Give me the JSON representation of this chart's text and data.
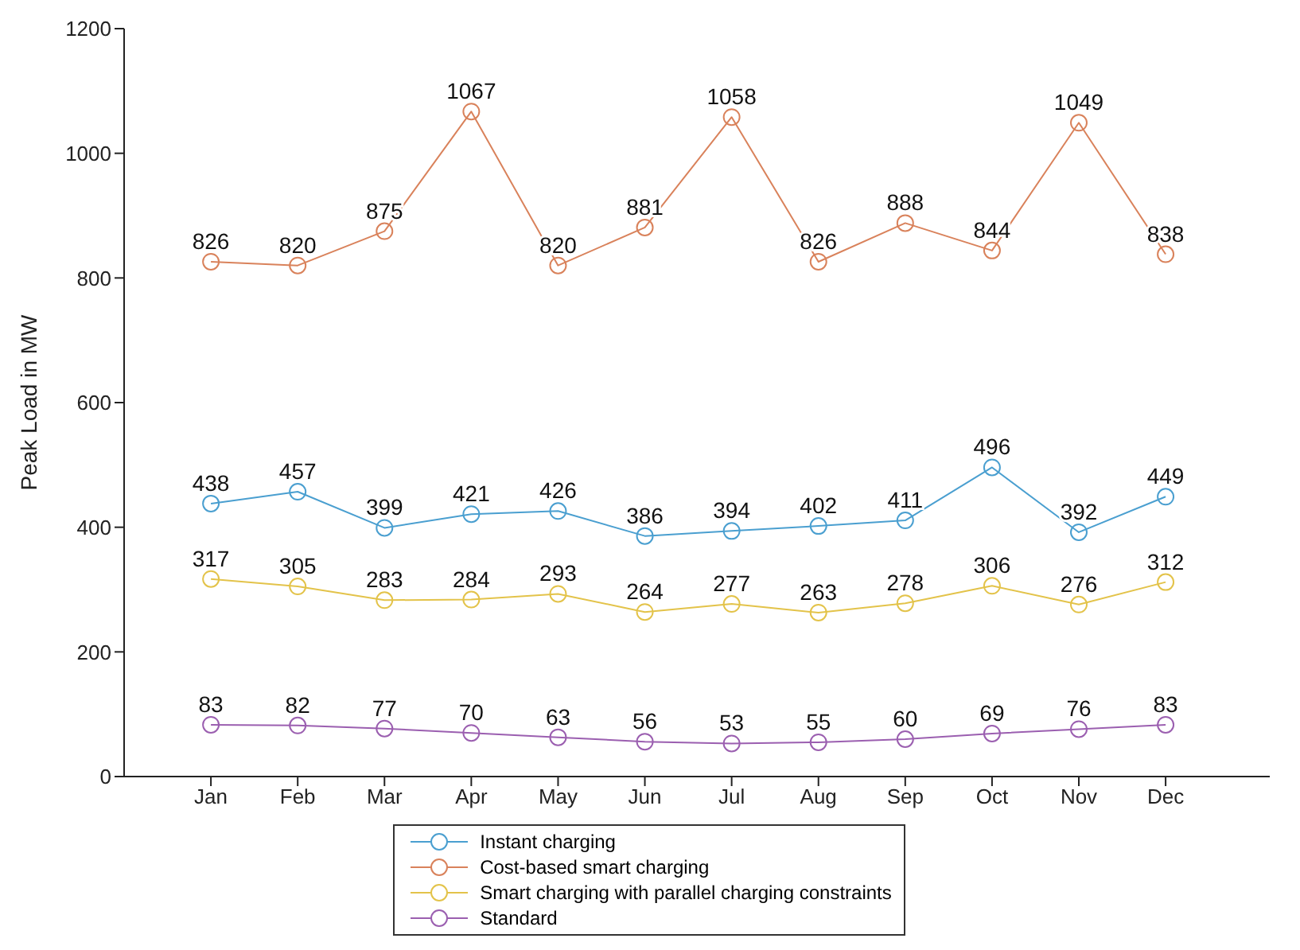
{
  "chart_data": {
    "type": "line",
    "ylabel": "Peak Load in MW",
    "categories": [
      "Jan",
      "Feb",
      "Mar",
      "Apr",
      "May",
      "Jun",
      "Jul",
      "Aug",
      "Sep",
      "Oct",
      "Nov",
      "Dec"
    ],
    "series": [
      {
        "name": "Instant charging",
        "color": "#4a9fd0",
        "values": [
          438,
          457,
          399,
          421,
          426,
          386,
          394,
          402,
          411,
          496,
          392,
          449
        ]
      },
      {
        "name": "Cost-based smart charging",
        "color": "#d9825b",
        "values": [
          826,
          820,
          875,
          1067,
          820,
          881,
          1058,
          826,
          888,
          844,
          1049,
          838
        ]
      },
      {
        "name": "Smart charging with parallel charging constraints",
        "color": "#e3c34a",
        "values": [
          317,
          305,
          283,
          284,
          293,
          264,
          277,
          263,
          278,
          306,
          276,
          312
        ]
      },
      {
        "name": "Standard",
        "color": "#9b5fb0",
        "values": [
          83,
          82,
          77,
          70,
          63,
          56,
          53,
          55,
          60,
          69,
          76,
          83
        ]
      }
    ],
    "ylim": [
      0,
      1200
    ],
    "yticks": [
      0,
      200,
      400,
      600,
      800,
      1000,
      1200
    ],
    "grid": false,
    "legend": "bottom",
    "marker": "circle",
    "line_style": "solid",
    "data_labels": true
  }
}
